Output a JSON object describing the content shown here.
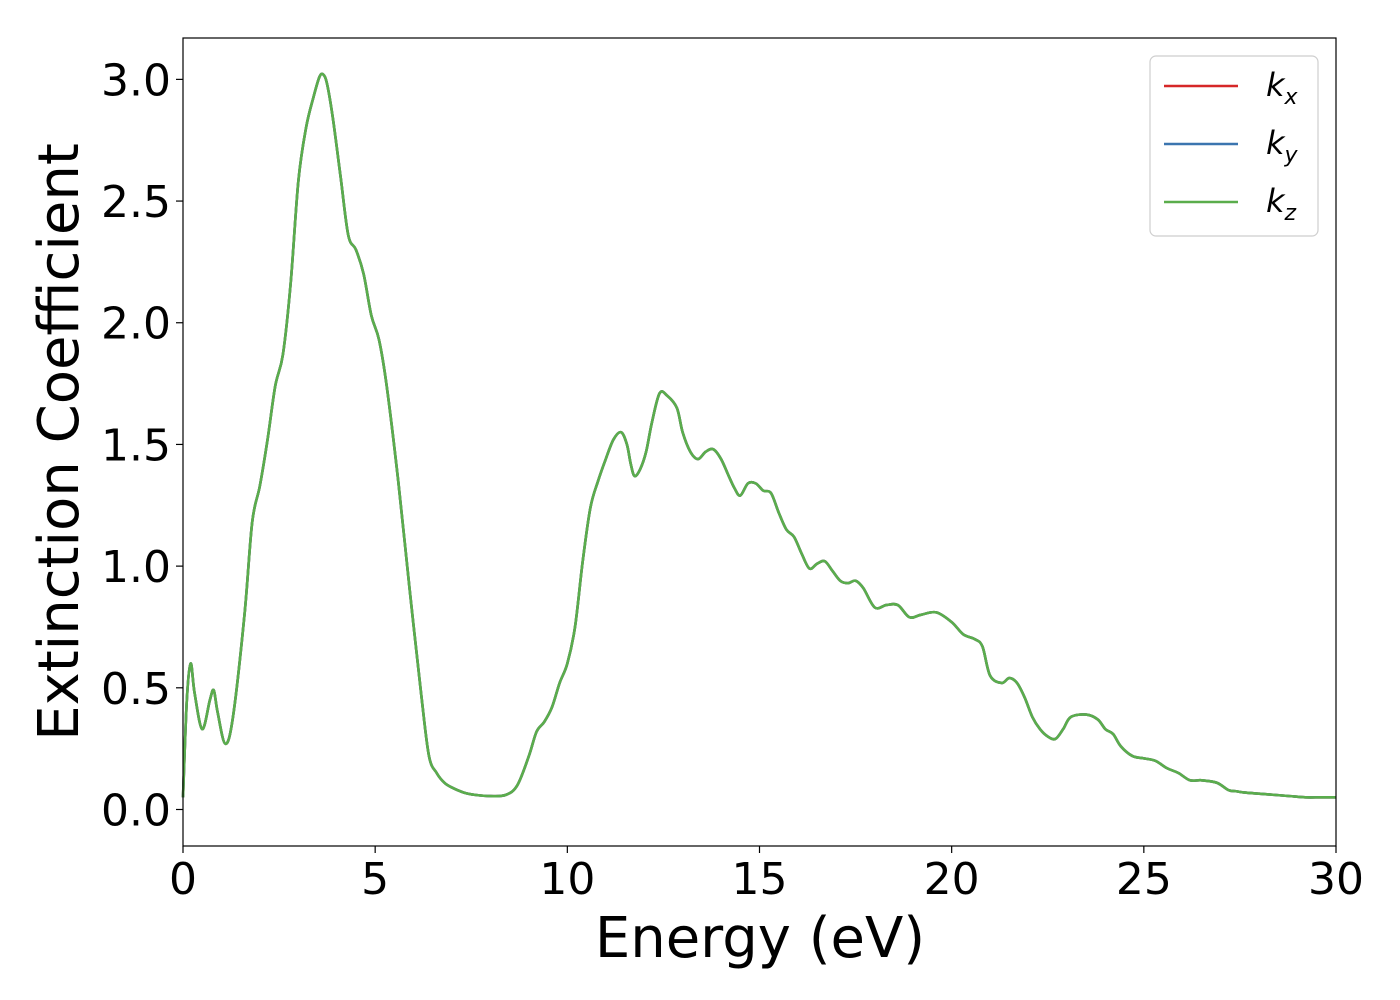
{
  "chart_data": {
    "type": "line",
    "xlabel": "Energy (eV)",
    "ylabel": "Extinction Coefficient",
    "xlim": [
      0,
      30
    ],
    "ylim": [
      -0.15,
      3.17
    ],
    "xticks": [
      0,
      5,
      10,
      15,
      20,
      25,
      30
    ],
    "xtick_labels": [
      "0",
      "5",
      "10",
      "15",
      "20",
      "25",
      "30"
    ],
    "yticks": [
      0.0,
      0.5,
      1.0,
      1.5,
      2.0,
      2.5,
      3.0
    ],
    "ytick_labels": [
      "0.0",
      "0.5",
      "1.0",
      "1.5",
      "2.0",
      "2.5",
      "3.0"
    ],
    "grid": false,
    "legend_position": "top-right",
    "legend": [
      {
        "base": "k",
        "sub": "x",
        "color": "#d62728"
      },
      {
        "base": "k",
        "sub": "y",
        "color": "#3b75af"
      },
      {
        "base": "k",
        "sub": "z",
        "color": "#5aad4c"
      }
    ],
    "x": [
      0,
      0.1,
      0.2,
      0.3,
      0.5,
      0.7,
      0.8,
      0.9,
      1.1,
      1.3,
      1.6,
      1.8,
      2.0,
      2.2,
      2.4,
      2.6,
      2.8,
      3.0,
      3.2,
      3.4,
      3.55,
      3.65,
      3.75,
      3.9,
      4.1,
      4.3,
      4.5,
      4.7,
      4.9,
      5.1,
      5.3,
      5.6,
      5.9,
      6.2,
      6.4,
      6.6,
      6.8,
      7.0,
      7.3,
      7.6,
      8.0,
      8.4,
      8.7,
      9.0,
      9.2,
      9.4,
      9.6,
      9.8,
      10.0,
      10.2,
      10.4,
      10.6,
      10.8,
      11.0,
      11.2,
      11.4,
      11.55,
      11.65,
      11.75,
      11.9,
      12.05,
      12.2,
      12.4,
      12.6,
      12.85,
      13.0,
      13.2,
      13.4,
      13.6,
      13.8,
      14.0,
      14.2,
      14.35,
      14.5,
      14.7,
      14.9,
      15.1,
      15.3,
      15.5,
      15.7,
      15.9,
      16.1,
      16.3,
      16.5,
      16.7,
      16.9,
      17.1,
      17.3,
      17.5,
      17.7,
      18.0,
      18.3,
      18.6,
      18.9,
      19.2,
      19.6,
      20.0,
      20.3,
      20.6,
      20.8,
      21.0,
      21.3,
      21.5,
      21.7,
      21.9,
      22.1,
      22.3,
      22.5,
      22.7,
      22.9,
      23.1,
      23.5,
      23.8,
      24.0,
      24.2,
      24.4,
      24.7,
      25.0,
      25.3,
      25.6,
      25.9,
      26.2,
      26.5,
      26.9,
      27.2,
      27.4,
      27.6,
      28.0,
      28.4,
      28.8,
      29.2,
      29.6,
      30.0
    ],
    "series": [
      {
        "values": [
          0.05,
          0.45,
          0.6,
          0.48,
          0.33,
          0.45,
          0.49,
          0.4,
          0.27,
          0.38,
          0.8,
          1.18,
          1.33,
          1.52,
          1.74,
          1.87,
          2.16,
          2.58,
          2.8,
          2.93,
          3.01,
          3.02,
          2.98,
          2.84,
          2.6,
          2.36,
          2.3,
          2.2,
          2.03,
          1.93,
          1.74,
          1.35,
          0.9,
          0.47,
          0.22,
          0.15,
          0.11,
          0.09,
          0.07,
          0.06,
          0.055,
          0.06,
          0.1,
          0.22,
          0.32,
          0.36,
          0.42,
          0.52,
          0.6,
          0.75,
          1.02,
          1.24,
          1.35,
          1.44,
          1.52,
          1.55,
          1.5,
          1.42,
          1.37,
          1.4,
          1.47,
          1.59,
          1.71,
          1.7,
          1.65,
          1.55,
          1.47,
          1.44,
          1.47,
          1.48,
          1.44,
          1.37,
          1.32,
          1.29,
          1.34,
          1.34,
          1.31,
          1.3,
          1.22,
          1.15,
          1.12,
          1.05,
          0.99,
          1.01,
          1.02,
          0.98,
          0.94,
          0.93,
          0.94,
          0.91,
          0.83,
          0.84,
          0.84,
          0.79,
          0.8,
          0.81,
          0.77,
          0.72,
          0.7,
          0.67,
          0.55,
          0.52,
          0.54,
          0.52,
          0.46,
          0.38,
          0.33,
          0.3,
          0.29,
          0.33,
          0.38,
          0.39,
          0.37,
          0.33,
          0.31,
          0.26,
          0.22,
          0.21,
          0.2,
          0.17,
          0.15,
          0.12,
          0.12,
          0.11,
          0.08,
          0.075,
          0.07,
          0.065,
          0.06,
          0.055,
          0.05,
          0.05,
          0.05
        ]
      }
    ]
  }
}
